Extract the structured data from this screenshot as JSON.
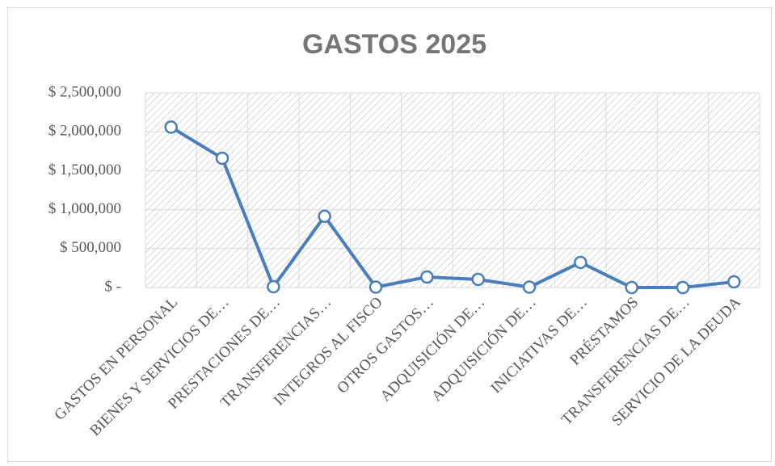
{
  "chart_data": {
    "type": "line",
    "title": "GASTOS 2025",
    "categories": [
      "GASTOS EN PERSONAL",
      "BIENES Y SERVICIOS DE…",
      "PRESTACIONES DE…",
      "TRANSFERENCIAS…",
      "INTEGROS AL FISCO",
      "OTROS GASTOS…",
      "ADQUISICIÓN DE…",
      "ADQUISICIÓN DE…",
      "INICIATIVAS DE…",
      "PRÉSTAMOS",
      "TRANSFERENCIAS DE…",
      "SERVICIO DE LA DEUDA"
    ],
    "values": [
      2060000,
      1660000,
      10000,
      915000,
      5000,
      135000,
      104000,
      5000,
      322000,
      0,
      0,
      73000
    ],
    "color": "#4a7ebb",
    "ylim": [
      0,
      2500000
    ],
    "yticks": [
      {
        "value": 0,
        "label": "$ -"
      },
      {
        "value": 500000,
        "label": "$ 500,000"
      },
      {
        "value": 1000000,
        "label": "$ 1,000,000"
      },
      {
        "value": 1500000,
        "label": "$ 1,500,000"
      },
      {
        "value": 2000000,
        "label": "$ 2,000,000"
      },
      {
        "value": 2500000,
        "label": "$ 2,500,000"
      }
    ],
    "grid": true
  }
}
